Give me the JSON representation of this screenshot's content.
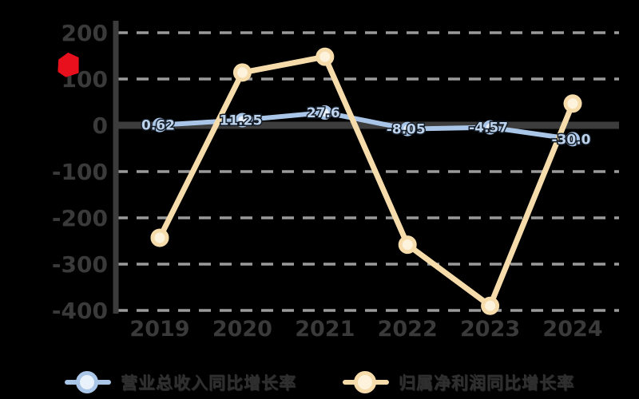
{
  "page": {
    "background": "#000000"
  },
  "flag_icon": {
    "color": "#e8101d"
  },
  "chart_data": {
    "type": "line",
    "title": "",
    "xlabel": "",
    "ylabel": "",
    "categories": [
      "2019",
      "2020",
      "2021",
      "2022",
      "2023",
      "2024"
    ],
    "series": [
      {
        "name": "营业总收入同比增长率",
        "color": "#a9c6e8",
        "marker_fill": "#e9f2fb",
        "values": [
          0.62,
          11.25,
          27.6,
          -8.05,
          -4.57,
          -30.0
        ],
        "labels": [
          "0.62",
          "11.25",
          "27.6",
          "-8.05",
          "-4.57",
          "-30.0"
        ],
        "show_labels": true
      },
      {
        "name": "归属净利润同比增长率",
        "color": "#f7dcab",
        "marker_fill": "#fdf3dd",
        "values": [
          -243,
          114,
          148,
          -258,
          -390,
          47
        ],
        "labels": [],
        "show_labels": false
      }
    ],
    "y_ticks": [
      200,
      100,
      0,
      -100,
      -200,
      -300,
      -400
    ],
    "ylim": [
      -400,
      200
    ],
    "grid": true,
    "legend_position": "bottom"
  },
  "legend": {
    "items": [
      {
        "label": "营业总收入同比增长率",
        "series": "blue"
      },
      {
        "label": "归属净利润同比增长率",
        "series": "yellow"
      }
    ]
  },
  "colors": {
    "axis": "#3c3c3c",
    "grid": "#9a9a9a",
    "tick_text": "#3a3a3a",
    "label_text": "#bdd3ec",
    "label_outline": "#131b26"
  }
}
